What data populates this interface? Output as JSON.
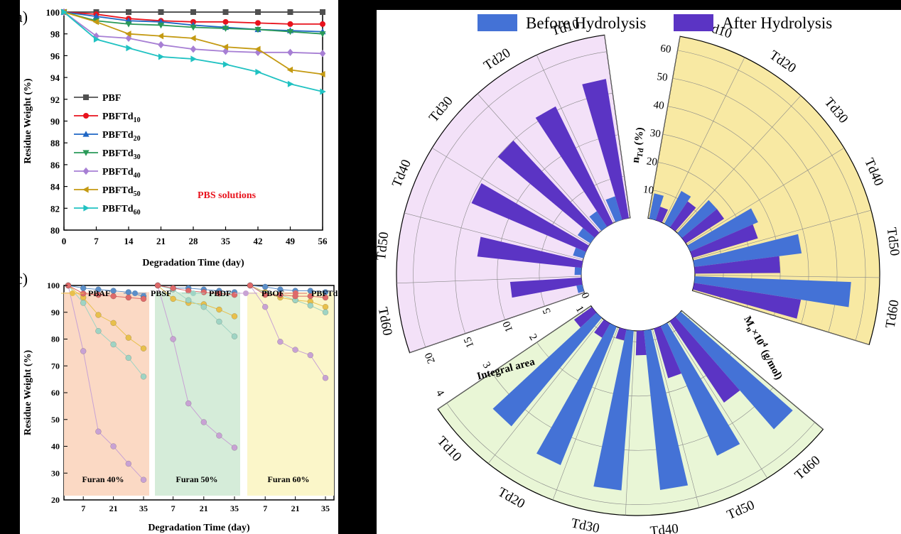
{
  "chart_data": [
    {
      "type": "line",
      "panel_label": "a)",
      "xlabel": "Degradation Time (day)",
      "ylabel": "Residue Weight (%)",
      "xlim": [
        0,
        56
      ],
      "ylim": [
        80,
        100
      ],
      "xticks": [
        0,
        7,
        14,
        21,
        28,
        35,
        42,
        49,
        56
      ],
      "yticks": [
        80,
        82,
        84,
        86,
        88,
        90,
        92,
        94,
        96,
        98,
        100
      ],
      "annotation": "PBS solutions",
      "annotation_color": "#e8131d",
      "x": [
        0,
        7,
        14,
        21,
        28,
        35,
        42,
        49,
        56
      ],
      "series": [
        {
          "name": "PBF",
          "sub": "",
          "color": "#505050",
          "marker": "square",
          "values": [
            100,
            100,
            100,
            100,
            100,
            100,
            100,
            100,
            100
          ]
        },
        {
          "name": "PBFTd",
          "sub": "10",
          "color": "#e8131d",
          "marker": "circle",
          "values": [
            100,
            99.8,
            99.4,
            99.2,
            99.1,
            99.1,
            99.0,
            98.9,
            98.9
          ]
        },
        {
          "name": "PBFTd",
          "sub": "20",
          "color": "#1f66c4",
          "marker": "triangle-up",
          "values": [
            100,
            99.6,
            99.2,
            99.1,
            98.8,
            98.6,
            98.4,
            98.3,
            98.2
          ]
        },
        {
          "name": "PBFTd",
          "sub": "30",
          "color": "#2a9a58",
          "marker": "triangle-down",
          "values": [
            100,
            99.2,
            98.9,
            98.8,
            98.6,
            98.5,
            98.4,
            98.2,
            98.0
          ]
        },
        {
          "name": "PBFTd",
          "sub": "40",
          "color": "#a77fd4",
          "marker": "diamond",
          "values": [
            100,
            97.8,
            97.6,
            97.0,
            96.6,
            96.4,
            96.3,
            96.3,
            96.2
          ]
        },
        {
          "name": "PBFTd",
          "sub": "50",
          "color": "#c49a12",
          "marker": "triangle-left",
          "values": [
            100,
            99.1,
            98.0,
            97.8,
            97.6,
            96.8,
            96.6,
            94.7,
            94.3
          ]
        },
        {
          "name": "PBFTd",
          "sub": "60",
          "color": "#20c2c2",
          "marker": "triangle-right",
          "values": [
            100,
            97.5,
            96.7,
            95.9,
            95.7,
            95.2,
            94.5,
            93.4,
            92.7
          ]
        }
      ]
    },
    {
      "type": "line",
      "panel_label": "c)",
      "xlabel": "Degradation Time (day)",
      "ylabel": "Residue Weight (%)",
      "ylim": [
        20,
        100
      ],
      "yticks": [
        20,
        30,
        40,
        50,
        60,
        70,
        80,
        90,
        100
      ],
      "xticks": [
        7,
        21,
        35
      ],
      "x": [
        0,
        7,
        14,
        21,
        28,
        35
      ],
      "groups": [
        {
          "label": "Furan 40%",
          "bg": "#fbd9c4",
          "series": [
            {
              "name": "PBAF",
              "color": "#e8c04c",
              "values": [
                100,
                95.5,
                89,
                86,
                80.5,
                76.5
              ]
            },
            {
              "name": "PBSF",
              "color": "#5b8ec8",
              "values": [
                100,
                99,
                98.5,
                98,
                97.5,
                96
              ]
            },
            {
              "name": "PBDF",
              "color": "#9fd4c4",
              "values": [
                100,
                93.5,
                83,
                78,
                73,
                66
              ]
            },
            {
              "name": "PBOF",
              "color": "#c8a2d4",
              "values": [
                100,
                75.5,
                45.5,
                40,
                33.5,
                27.5
              ]
            },
            {
              "name": "PBFTd",
              "color": "#de6a6a",
              "values": [
                100,
                97,
                96.5,
                96,
                95.5,
                95
              ]
            }
          ]
        },
        {
          "label": "Furan 50%",
          "bg": "#d5ecd9",
          "series": [
            {
              "name": "PBAF",
              "color": "#e8c04c",
              "values": [
                100,
                95,
                93.5,
                93,
                91,
                88.5
              ]
            },
            {
              "name": "PBSF",
              "color": "#5b8ec8",
              "values": [
                100,
                99,
                99,
                98.5,
                98,
                97.5
              ]
            },
            {
              "name": "PBDF",
              "color": "#9fd4c4",
              "values": [
                100,
                98.5,
                94.5,
                92,
                86.5,
                81
              ]
            },
            {
              "name": "PBOF",
              "color": "#c8a2d4",
              "values": [
                100,
                80,
                56,
                49,
                44,
                39.5
              ]
            },
            {
              "name": "PBFTd",
              "color": "#de6a6a",
              "values": [
                100,
                99,
                98,
                97.5,
                97,
                96.5
              ]
            }
          ]
        },
        {
          "label": "Furan 60%",
          "bg": "#fbf6c9",
          "series": [
            {
              "name": "PBAF",
              "color": "#e8c04c",
              "values": [
                100,
                97.5,
                95.5,
                94.5,
                94,
                92
              ]
            },
            {
              "name": "PBSF",
              "color": "#5b8ec8",
              "values": [
                100,
                99.5,
                98.5,
                98,
                98,
                97.5
              ]
            },
            {
              "name": "PBDF",
              "color": "#9fd4c4",
              "values": [
                100,
                97,
                96.5,
                94.5,
                92.5,
                90
              ]
            },
            {
              "name": "PBOF",
              "color": "#c8a2d4",
              "values": [
                100,
                92,
                79,
                76,
                74,
                65.5
              ]
            },
            {
              "name": "PBFTd",
              "color": "#de6a6a",
              "values": [
                100,
                96.5,
                96.5,
                96,
                96,
                95.5
              ]
            }
          ]
        }
      ],
      "legend": [
        "PBAF",
        "PBSF",
        "PBDF",
        "PBOF",
        "PBFTd"
      ]
    },
    {
      "type": "polar-bar",
      "legend": [
        {
          "label": "Before Hydrolysis",
          "color": "#4472d6"
        },
        {
          "label": "After Hydrolysis",
          "color": "#5b34c4"
        }
      ],
      "categories": [
        "Td10",
        "Td20",
        "Td30",
        "Td40",
        "Td50",
        "Td60"
      ],
      "sectors": [
        {
          "name": "ntd",
          "axis_label_main": "n",
          "axis_label_sub": "Td",
          "axis_label_tail": " (%)",
          "rlim": [
            0,
            65
          ],
          "rticks": [
            10,
            20,
            30,
            40,
            50,
            60
          ],
          "bg": "#f8e9a3",
          "before": [
            9,
            13,
            16,
            26,
            38,
            55
          ],
          "after": [
            5,
            11,
            16,
            24,
            30,
            38
          ]
        },
        {
          "name": "mn",
          "axis_label_main": "M",
          "axis_label_sub": "n",
          "axis_label_tail": "×10",
          "axis_label_sup": "4",
          "axis_label_end": " (g/mol)",
          "rlim": [
            0.8,
            4.2
          ],
          "rticks": [
            1,
            2,
            3,
            4
          ],
          "bg": "#e9f6d6",
          "before": [
            3.55,
            3.4,
            3.75,
            3.75,
            3.55,
            3.4
          ],
          "after": [
            2.6,
            1.75,
            1.25,
            1.0,
            1.1,
            1.2
          ]
        },
        {
          "name": "area",
          "axis_label_main": "Integral area",
          "rlim": [
            0,
            22
          ],
          "rticks": [
            0,
            5,
            10,
            15,
            20
          ],
          "bg": "#f3e1f8",
          "before": [
            0.7,
            0.8,
            1.3,
            1.8,
            2.2,
            2.9
          ],
          "after": [
            8.5,
            12.5,
            14.8,
            15.0,
            15.5,
            16.8
          ]
        }
      ]
    }
  ]
}
